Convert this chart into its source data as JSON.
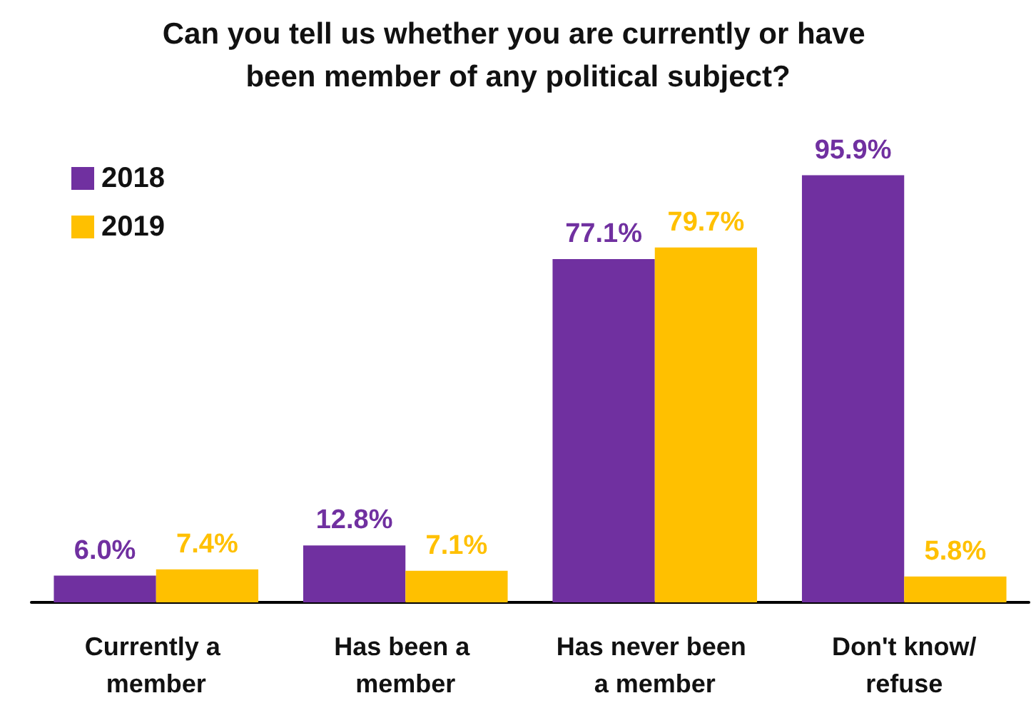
{
  "chart_data": {
    "type": "bar",
    "title": "Can you tell us whether you are currently or have been member of any political subject?",
    "categories": [
      "Currently a member",
      "Has been a member",
      "Has never been a member",
      "Don't know/refuse"
    ],
    "series": [
      {
        "name": "2018",
        "color": "#7030a0",
        "values": [
          6.0,
          12.8,
          77.1,
          95.9
        ],
        "value_labels": [
          "6.0%",
          "12.8%",
          "77.1%",
          "95.9%"
        ]
      },
      {
        "name": "2019",
        "color": "#ffc000",
        "values": [
          7.4,
          7.1,
          79.7,
          5.8
        ],
        "value_labels": [
          "7.4%",
          "7.1%",
          "79.7%",
          "5.8%"
        ]
      }
    ],
    "legend": "top left"
  }
}
